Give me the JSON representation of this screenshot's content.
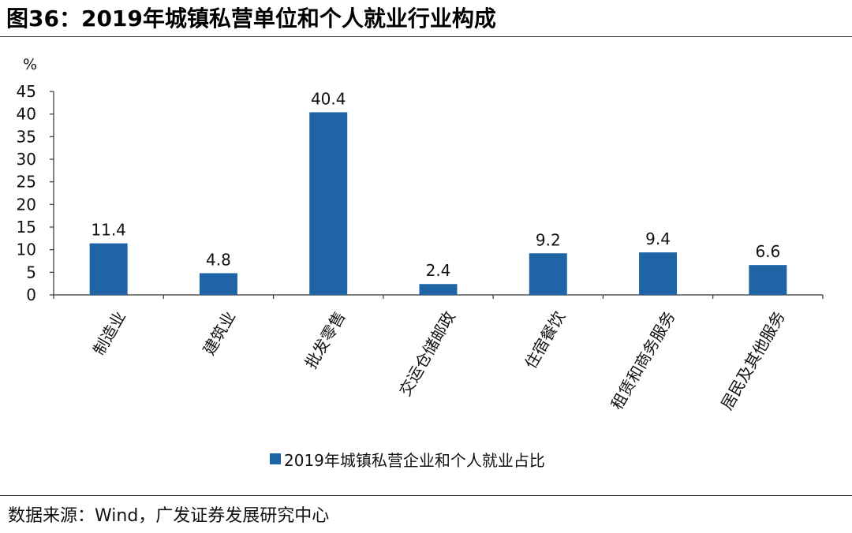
{
  "header": {
    "title": "图36：2019年城镇私营单位和个人就业行业构成"
  },
  "footer": {
    "source": "数据来源：Wind，广发证券发展研究中心"
  },
  "colors": {
    "bar": "#1F65A6",
    "axis": "#333333"
  },
  "chart_data": {
    "type": "bar",
    "title": "",
    "ylabel": "%",
    "xlabel": "",
    "ylim": [
      0,
      45
    ],
    "yticks": [
      0,
      5,
      10,
      15,
      20,
      25,
      30,
      35,
      40,
      45
    ],
    "grid": false,
    "legend_position": "bottom",
    "categories": [
      "制造业",
      "建筑业",
      "批发零售",
      "交运仓储邮政",
      "住宿餐饮",
      "租赁和商务服务",
      "居民及其他服务"
    ],
    "series": [
      {
        "name": "2019年城镇私营企业和个人就业占比",
        "values": [
          11.4,
          4.8,
          40.4,
          2.4,
          9.2,
          9.4,
          6.6
        ],
        "labels": [
          "11.4",
          "4.8",
          "40.4",
          "2.4",
          "9.2",
          "9.4",
          "6.6"
        ]
      }
    ]
  }
}
